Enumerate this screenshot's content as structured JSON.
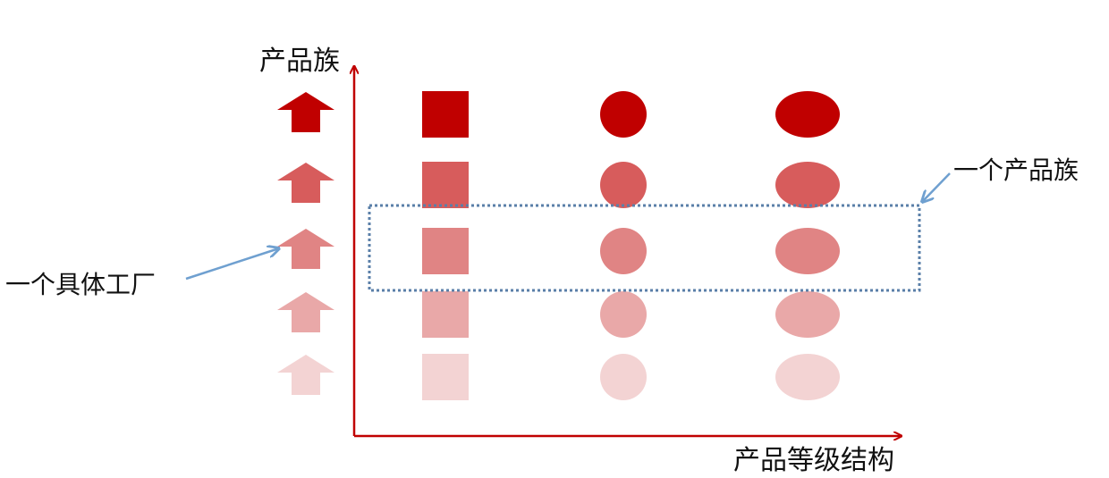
{
  "labels": {
    "y_axis": "产品族",
    "x_axis": "产品等级结构",
    "family_callout": "一个产品族",
    "factory_callout": "一个具体工厂"
  },
  "colors": {
    "axis": "#c00000",
    "row_fills": [
      "#c00000",
      "#d75c5c",
      "#e08484",
      "#e9a8a8",
      "#f3d3d3"
    ],
    "dotted_box": "#5a7fa8",
    "callout_arrow": "#6fa0d0",
    "text": "#111111"
  },
  "shapes": {
    "factory_icon": "up-arrow-icon",
    "columns": [
      "square",
      "circle",
      "ellipse"
    ]
  },
  "highlighted_row": 2
}
